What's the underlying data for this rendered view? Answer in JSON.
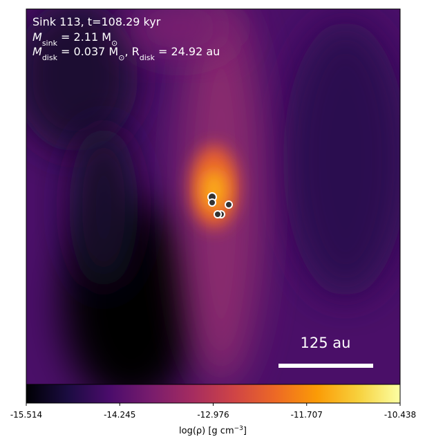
{
  "chart_data": {
    "type": "image",
    "annotations": {
      "line1": "Sink 113, t=108.29 kyr",
      "line2": [
        "M",
        "sink",
        " = 2.11 M",
        "⊙"
      ],
      "line3": [
        "M",
        "disk",
        " = 0.037 M",
        "⊙",
        ", R",
        "disk",
        " = 24.92 au"
      ]
    },
    "scale_bar_label": "125 au",
    "colorbar": {
      "colormap": "inferno",
      "lim": [
        -15.514,
        -10.438
      ],
      "ticks": [
        -15.514,
        -14.245,
        -12.976,
        -11.707,
        -10.438
      ],
      "label": [
        "log(ρ) [g cm",
        "−3",
        "]"
      ]
    }
  }
}
